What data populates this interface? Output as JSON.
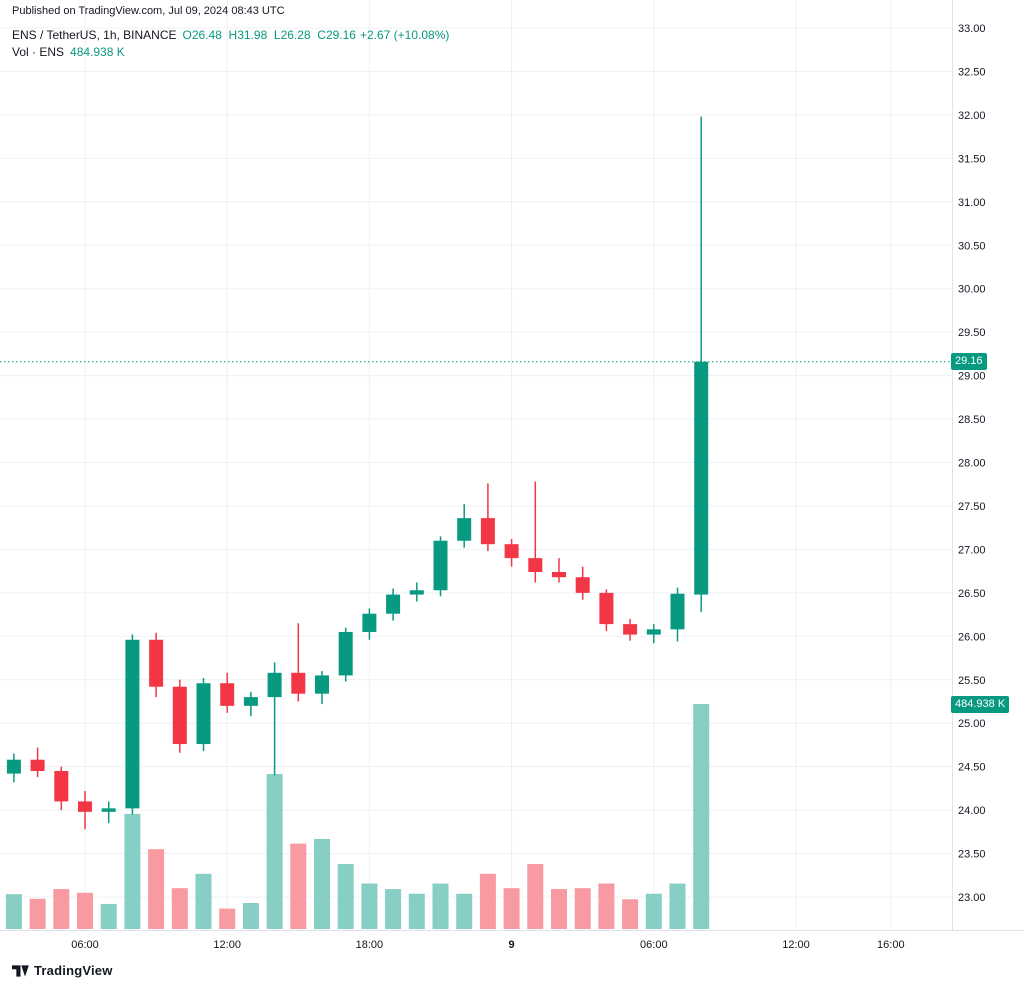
{
  "published_line": "Published on TradingView.com, Jul 09, 2024 08:43 UTC",
  "legend": {
    "symbol": "ENS / TetherUS, 1h, BINANCE",
    "ohlc_text": "O26.48  H31.98  L26.28  C29.16",
    "change": "+2.67 (+10.08%)",
    "volume_label": "Vol · ENS",
    "volume_value": "484.938 K"
  },
  "price_label": "29.16",
  "volume_badge": "484.938 K",
  "footer": {
    "brand": "TradingView"
  },
  "colors": {
    "up": "#089981",
    "down": "#f23645",
    "vol_up": "#87cec5",
    "vol_down": "#f89aa2",
    "grid": "#edf0f4",
    "separator": "#e0e3eb",
    "axis_text": "#131722",
    "accent": "#089981",
    "badge_bg": "#089981",
    "badge_text": "#ffffff"
  },
  "chart_data": {
    "type": "candlestick",
    "title": "ENS / TetherUS, 1h, BINANCE",
    "x_unit": "1 hour",
    "current_price": 29.16,
    "current_volume_k": 484.938,
    "y_axis": {
      "min": 23.0,
      "max": 33.0,
      "step": 0.5
    },
    "y_ticks": [
      "33.00",
      "32.50",
      "32.00",
      "31.50",
      "31.00",
      "30.50",
      "30.00",
      "29.50",
      "29.00",
      "28.50",
      "28.00",
      "27.50",
      "27.00",
      "26.50",
      "26.00",
      "25.50",
      "25.00",
      "24.50",
      "24.00",
      "23.50",
      "23.00"
    ],
    "x_ticks": [
      {
        "label": "06:00",
        "slot": 3
      },
      {
        "label": "12:00",
        "slot": 9
      },
      {
        "label": "18:00",
        "slot": 15
      },
      {
        "label": "9",
        "slot": 21,
        "bold": true
      },
      {
        "label": "06:00",
        "slot": 27
      },
      {
        "label": "12:00",
        "slot": 33
      },
      {
        "label": "16:00",
        "slot": 37
      }
    ],
    "candles": [
      {
        "time": "Jul 8, 03:00",
        "o": 24.42,
        "h": 24.65,
        "l": 24.32,
        "c": 24.58,
        "vol_k": 75
      },
      {
        "time": "Jul 8, 04:00",
        "o": 24.58,
        "h": 24.72,
        "l": 24.38,
        "c": 24.45,
        "vol_k": 65
      },
      {
        "time": "Jul 8, 05:00",
        "o": 24.45,
        "h": 24.5,
        "l": 24.0,
        "c": 24.1,
        "vol_k": 86
      },
      {
        "time": "Jul 8, 06:00",
        "o": 24.1,
        "h": 24.22,
        "l": 23.78,
        "c": 23.98,
        "vol_k": 78
      },
      {
        "time": "Jul 8, 07:00",
        "o": 23.98,
        "h": 24.1,
        "l": 23.85,
        "c": 24.02,
        "vol_k": 54
      },
      {
        "time": "Jul 8, 08:00",
        "o": 24.02,
        "h": 26.02,
        "l": 23.95,
        "c": 25.96,
        "vol_k": 248
      },
      {
        "time": "Jul 8, 09:00",
        "o": 25.96,
        "h": 26.04,
        "l": 25.3,
        "c": 25.42,
        "vol_k": 172
      },
      {
        "time": "Jul 8, 10:00",
        "o": 25.42,
        "h": 25.5,
        "l": 24.66,
        "c": 24.76,
        "vol_k": 88
      },
      {
        "time": "Jul 8, 11:00",
        "o": 24.76,
        "h": 25.52,
        "l": 24.68,
        "c": 25.46,
        "vol_k": 119
      },
      {
        "time": "Jul 8, 12:00",
        "o": 25.46,
        "h": 25.58,
        "l": 25.12,
        "c": 25.2,
        "vol_k": 44
      },
      {
        "time": "Jul 8, 13:00",
        "o": 25.2,
        "h": 25.36,
        "l": 25.08,
        "c": 25.3,
        "vol_k": 56
      },
      {
        "time": "Jul 8, 14:00",
        "o": 25.3,
        "h": 25.7,
        "l": 24.4,
        "c": 25.58,
        "vol_k": 334
      },
      {
        "time": "Jul 8, 15:00",
        "o": 25.58,
        "h": 26.15,
        "l": 25.25,
        "c": 25.34,
        "vol_k": 184
      },
      {
        "time": "Jul 8, 16:00",
        "o": 25.34,
        "h": 25.6,
        "l": 25.22,
        "c": 25.55,
        "vol_k": 194
      },
      {
        "time": "Jul 8, 17:00",
        "o": 25.55,
        "h": 26.1,
        "l": 25.48,
        "c": 26.05,
        "vol_k": 140
      },
      {
        "time": "Jul 8, 18:00",
        "o": 26.05,
        "h": 26.32,
        "l": 25.96,
        "c": 26.26,
        "vol_k": 98
      },
      {
        "time": "Jul 8, 19:00",
        "o": 26.26,
        "h": 26.55,
        "l": 26.18,
        "c": 26.48,
        "vol_k": 86
      },
      {
        "time": "Jul 8, 20:00",
        "o": 26.48,
        "h": 26.62,
        "l": 26.4,
        "c": 26.53,
        "vol_k": 76
      },
      {
        "time": "Jul 8, 21:00",
        "o": 26.53,
        "h": 27.15,
        "l": 26.46,
        "c": 27.1,
        "vol_k": 98
      },
      {
        "time": "Jul 8, 22:00",
        "o": 27.1,
        "h": 27.52,
        "l": 27.02,
        "c": 27.36,
        "vol_k": 76
      },
      {
        "time": "Jul 8, 23:00",
        "o": 27.36,
        "h": 27.76,
        "l": 26.98,
        "c": 27.06,
        "vol_k": 119
      },
      {
        "time": "Jul 9, 00:00",
        "o": 27.06,
        "h": 27.12,
        "l": 26.8,
        "c": 26.9,
        "vol_k": 88
      },
      {
        "time": "Jul 9, 01:00",
        "o": 26.9,
        "h": 27.78,
        "l": 26.62,
        "c": 26.74,
        "vol_k": 140
      },
      {
        "time": "Jul 9, 02:00",
        "o": 26.74,
        "h": 26.9,
        "l": 26.62,
        "c": 26.68,
        "vol_k": 86
      },
      {
        "time": "Jul 9, 03:00",
        "o": 26.68,
        "h": 26.8,
        "l": 26.42,
        "c": 26.5,
        "vol_k": 88
      },
      {
        "time": "Jul 9, 04:00",
        "o": 26.5,
        "h": 26.54,
        "l": 26.06,
        "c": 26.14,
        "vol_k": 98
      },
      {
        "time": "Jul 9, 05:00",
        "o": 26.14,
        "h": 26.2,
        "l": 25.95,
        "c": 26.02,
        "vol_k": 64
      },
      {
        "time": "Jul 9, 06:00",
        "o": 26.02,
        "h": 26.14,
        "l": 25.92,
        "c": 26.08,
        "vol_k": 76
      },
      {
        "time": "Jul 9, 07:00",
        "o": 26.08,
        "h": 26.56,
        "l": 25.94,
        "c": 26.49,
        "vol_k": 98
      },
      {
        "time": "Jul 9, 08:00",
        "o": 26.48,
        "h": 31.98,
        "l": 26.28,
        "c": 29.16,
        "vol_k": 484.938
      }
    ]
  }
}
